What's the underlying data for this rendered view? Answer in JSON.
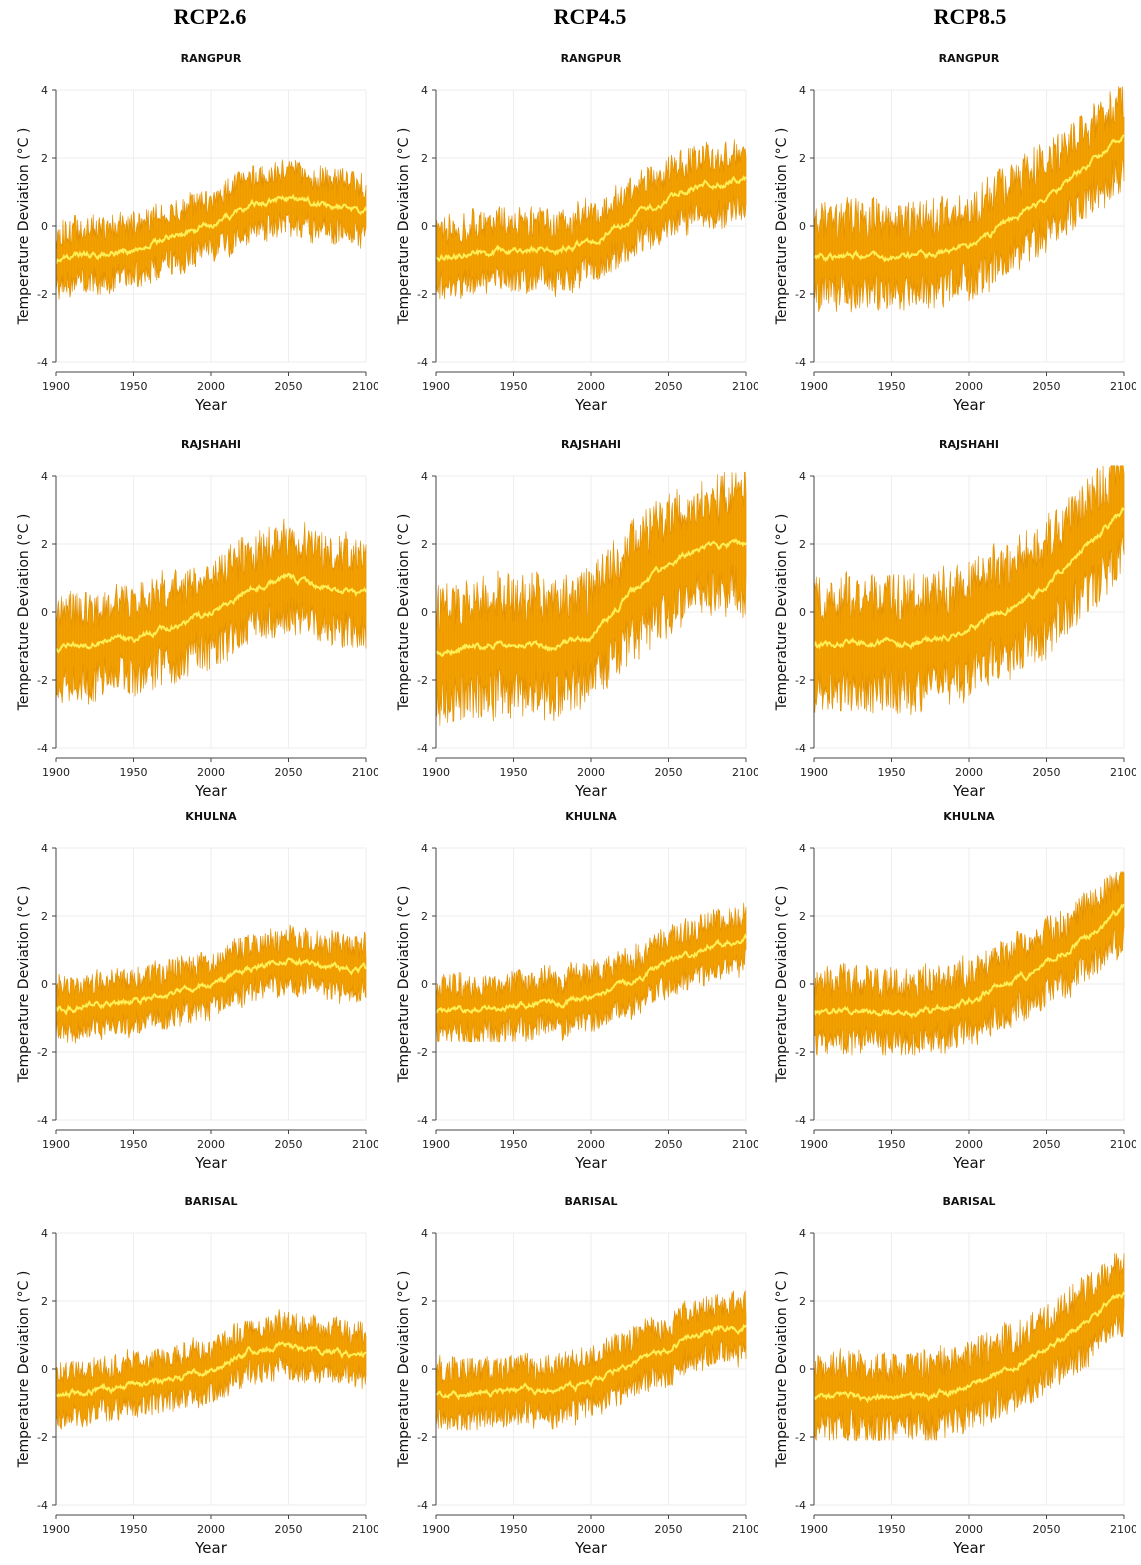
{
  "scenario_headers": [
    "RCP2.6",
    "RCP4.5",
    "RCP8.5"
  ],
  "colors": {
    "band": "#f5a300",
    "band_dark": "#e39000",
    "mean": "#ffee55"
  },
  "chart_data": [
    {
      "type": "line",
      "scenario": "RCP2.6",
      "title": "RANGPUR",
      "xlabel": "Year",
      "ylabel": "Temperature Deviation (°C )",
      "xlim": [
        1900,
        2100
      ],
      "ylim": [
        -4,
        4
      ],
      "xticks": [
        1900,
        1950,
        2000,
        2050,
        2100
      ],
      "yticks": [
        -4,
        -2,
        0,
        2,
        4
      ],
      "series": [
        {
          "x": [
            1900,
            1925,
            1950,
            1975,
            2000,
            2025,
            2050,
            2075,
            2100
          ],
          "y": [
            -1.0,
            -0.8,
            -0.7,
            -0.3,
            0.0,
            0.6,
            0.8,
            0.6,
            0.5
          ]
        }
      ],
      "band_range": [
        -2.2,
        2.4
      ]
    },
    {
      "type": "line",
      "scenario": "RCP4.5",
      "title": "RANGPUR",
      "xlabel": "Year",
      "ylabel": "Temperature Deviation (°C )",
      "xlim": [
        1900,
        2100
      ],
      "ylim": [
        -4,
        4
      ],
      "xticks": [
        1900,
        1950,
        2000,
        2050,
        2100
      ],
      "yticks": [
        -4,
        -2,
        0,
        2,
        4
      ],
      "series": [
        {
          "x": [
            1900,
            1925,
            1950,
            1975,
            2000,
            2025,
            2050,
            2075,
            2100
          ],
          "y": [
            -0.9,
            -0.8,
            -0.7,
            -0.7,
            -0.5,
            0.2,
            0.8,
            1.3,
            1.4
          ]
        }
      ],
      "band_range": [
        -2.2,
        2.9
      ]
    },
    {
      "type": "line",
      "scenario": "RCP8.5",
      "title": "RANGPUR",
      "xlabel": "Year",
      "ylabel": "Temperature Deviation (°C )",
      "xlim": [
        1900,
        2100
      ],
      "ylim": [
        -4,
        4
      ],
      "xticks": [
        1900,
        1950,
        2000,
        2050,
        2100
      ],
      "yticks": [
        -4,
        -2,
        0,
        2,
        4
      ],
      "series": [
        {
          "x": [
            1900,
            1925,
            1950,
            1975,
            2000,
            2025,
            2050,
            2075,
            2100
          ],
          "y": [
            -0.9,
            -0.9,
            -0.9,
            -0.9,
            -0.6,
            0.1,
            0.8,
            1.7,
            2.7
          ]
        }
      ],
      "band_range": [
        -2.6,
        4.1
      ]
    },
    {
      "type": "line",
      "scenario": "RCP2.6",
      "title": "RAJSHAHI",
      "xlabel": "Year",
      "ylabel": "Temperature Deviation (°C )",
      "xlim": [
        1900,
        2100
      ],
      "ylim": [
        -4,
        4
      ],
      "xticks": [
        1900,
        1950,
        2000,
        2050,
        2100
      ],
      "yticks": [
        -4,
        -2,
        0,
        2,
        4
      ],
      "series": [
        {
          "x": [
            1900,
            1925,
            1950,
            1975,
            2000,
            2025,
            2050,
            2075,
            2100
          ],
          "y": [
            -1.1,
            -0.9,
            -0.8,
            -0.4,
            0.0,
            0.7,
            1.0,
            0.7,
            0.5
          ]
        }
      ],
      "band_range": [
        -3.0,
        3.7
      ]
    },
    {
      "type": "line",
      "scenario": "RCP4.5",
      "title": "RAJSHAHI",
      "xlabel": "Year",
      "ylabel": "Temperature Deviation (°C )",
      "xlim": [
        1900,
        2100
      ],
      "ylim": [
        -4,
        4
      ],
      "xticks": [
        1900,
        1950,
        2000,
        2050,
        2100
      ],
      "yticks": [
        -4,
        -2,
        0,
        2,
        4
      ],
      "series": [
        {
          "x": [
            1900,
            1925,
            1950,
            1975,
            2000,
            2025,
            2050,
            2075,
            2100
          ],
          "y": [
            -1.2,
            -1.0,
            -0.9,
            -1.0,
            -0.8,
            0.5,
            1.4,
            2.0,
            2.0
          ]
        }
      ],
      "band_range": [
        -4.3,
        4.3
      ]
    },
    {
      "type": "line",
      "scenario": "RCP8.5",
      "title": "RAJSHAHI",
      "xlabel": "Year",
      "ylabel": "Temperature Deviation (°C )",
      "xlim": [
        1900,
        2100
      ],
      "ylim": [
        -4,
        4
      ],
      "xticks": [
        1900,
        1950,
        2000,
        2050,
        2100
      ],
      "yticks": [
        -4,
        -2,
        0,
        2,
        4
      ],
      "series": [
        {
          "x": [
            1900,
            1925,
            1950,
            1975,
            2000,
            2025,
            2050,
            2075,
            2100
          ],
          "y": [
            -1.0,
            -0.9,
            -0.9,
            -0.9,
            -0.5,
            0.1,
            0.8,
            1.9,
            3.0
          ]
        }
      ],
      "band_range": [
        -4.0,
        4.3
      ]
    },
    {
      "type": "line",
      "scenario": "RCP2.6",
      "title": "KHULNA",
      "xlabel": "Year",
      "ylabel": "Temperature Deviation (°C )",
      "xlim": [
        1900,
        2100
      ],
      "ylim": [
        -4,
        4
      ],
      "xticks": [
        1900,
        1950,
        2000,
        2050,
        2100
      ],
      "yticks": [
        -4,
        -2,
        0,
        2,
        4
      ],
      "series": [
        {
          "x": [
            1900,
            1925,
            1950,
            1975,
            2000,
            2025,
            2050,
            2075,
            2100
          ],
          "y": [
            -0.8,
            -0.6,
            -0.5,
            -0.3,
            0.0,
            0.5,
            0.7,
            0.5,
            0.4
          ]
        }
      ],
      "band_range": [
        -2.0,
        2.1
      ]
    },
    {
      "type": "line",
      "scenario": "RCP4.5",
      "title": "KHULNA",
      "xlabel": "Year",
      "ylabel": "Temperature Deviation (°C )",
      "xlim": [
        1900,
        2100
      ],
      "ylim": [
        -4,
        4
      ],
      "xticks": [
        1900,
        1950,
        2000,
        2050,
        2100
      ],
      "yticks": [
        -4,
        -2,
        0,
        2,
        4
      ],
      "series": [
        {
          "x": [
            1900,
            1925,
            1950,
            1975,
            2000,
            2025,
            2050,
            2075,
            2100
          ],
          "y": [
            -0.8,
            -0.7,
            -0.6,
            -0.6,
            -0.4,
            0.1,
            0.6,
            1.1,
            1.3
          ]
        }
      ],
      "band_range": [
        -1.7,
        2.6
      ]
    },
    {
      "type": "line",
      "scenario": "RCP8.5",
      "title": "KHULNA",
      "xlabel": "Year",
      "ylabel": "Temperature Deviation (°C )",
      "xlim": [
        1900,
        2100
      ],
      "ylim": [
        -4,
        4
      ],
      "xticks": [
        1900,
        1950,
        2000,
        2050,
        2100
      ],
      "yticks": [
        -4,
        -2,
        0,
        2,
        4
      ],
      "series": [
        {
          "x": [
            1900,
            1925,
            1950,
            1975,
            2000,
            2025,
            2050,
            2075,
            2100
          ],
          "y": [
            -0.8,
            -0.8,
            -0.8,
            -0.8,
            -0.5,
            0.0,
            0.6,
            1.4,
            2.2
          ]
        }
      ],
      "band_range": [
        -2.1,
        3.3
      ]
    },
    {
      "type": "line",
      "scenario": "RCP2.6",
      "title": "BARISAL",
      "xlabel": "Year",
      "ylabel": "Temperature Deviation (°C )",
      "xlim": [
        1900,
        2100
      ],
      "ylim": [
        -4,
        4
      ],
      "xticks": [
        1900,
        1950,
        2000,
        2050,
        2100
      ],
      "yticks": [
        -4,
        -2,
        0,
        2,
        4
      ],
      "series": [
        {
          "x": [
            1900,
            1925,
            1950,
            1975,
            2000,
            2025,
            2050,
            2075,
            2100
          ],
          "y": [
            -0.8,
            -0.6,
            -0.5,
            -0.3,
            0.0,
            0.5,
            0.7,
            0.5,
            0.4
          ]
        }
      ],
      "band_range": [
        -2.0,
        2.0
      ]
    },
    {
      "type": "line",
      "scenario": "RCP4.5",
      "title": "BARISAL",
      "xlabel": "Year",
      "ylabel": "Temperature Deviation (°C )",
      "xlim": [
        1900,
        2100
      ],
      "ylim": [
        -4,
        4
      ],
      "xticks": [
        1900,
        1950,
        2000,
        2050,
        2100
      ],
      "yticks": [
        -4,
        -2,
        0,
        2,
        4
      ],
      "series": [
        {
          "x": [
            1900,
            1925,
            1950,
            1975,
            2000,
            2025,
            2050,
            2075,
            2100
          ],
          "y": [
            -0.8,
            -0.7,
            -0.6,
            -0.6,
            -0.4,
            0.1,
            0.6,
            1.1,
            1.3
          ]
        }
      ],
      "band_range": [
        -1.8,
        2.6
      ]
    },
    {
      "type": "line",
      "scenario": "RCP8.5",
      "title": "BARISAL",
      "xlabel": "Year",
      "ylabel": "Temperature Deviation (°C )",
      "xlim": [
        1900,
        2100
      ],
      "ylim": [
        -4,
        4
      ],
      "xticks": [
        1900,
        1950,
        2000,
        2050,
        2100
      ],
      "yticks": [
        -4,
        -2,
        0,
        2,
        4
      ],
      "series": [
        {
          "x": [
            1900,
            1925,
            1950,
            1975,
            2000,
            2025,
            2050,
            2075,
            2100
          ],
          "y": [
            -0.8,
            -0.8,
            -0.8,
            -0.8,
            -0.5,
            0.0,
            0.6,
            1.4,
            2.3
          ]
        }
      ],
      "band_range": [
        -2.1,
        3.4
      ]
    }
  ]
}
